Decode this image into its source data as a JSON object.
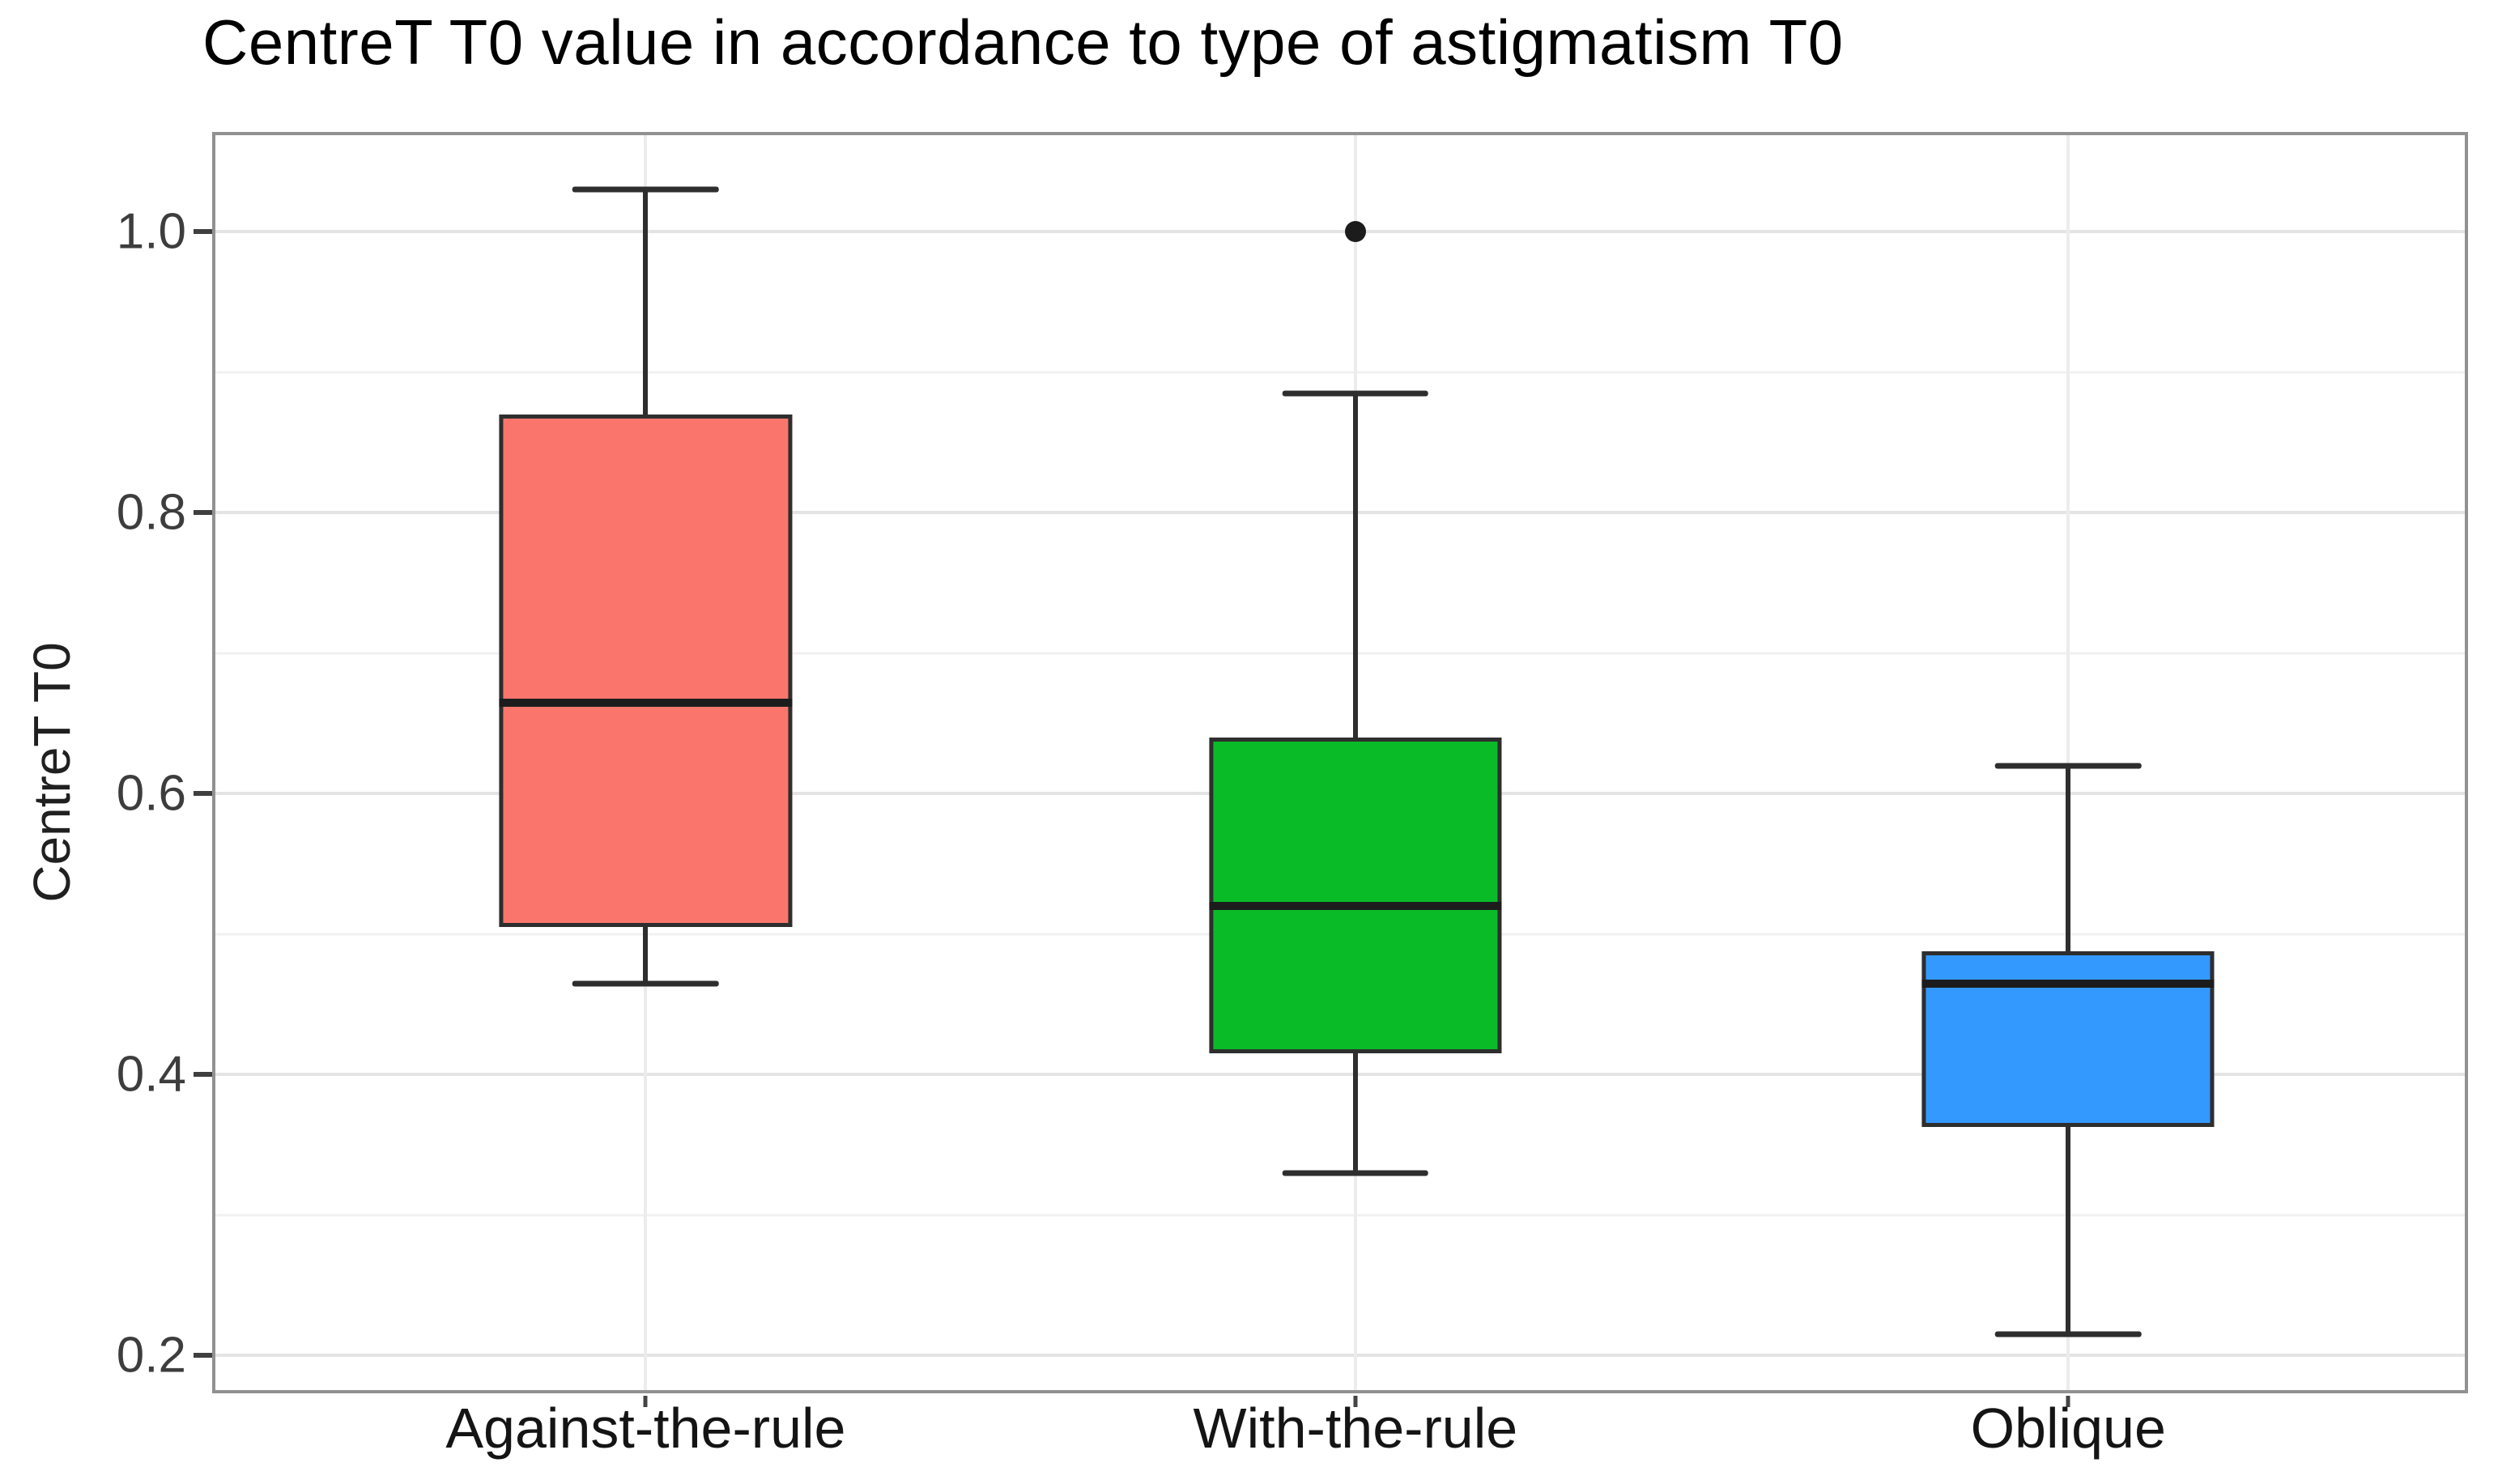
{
  "chart_data": {
    "type": "boxplot",
    "title": "CentreT T0 value in accordance to type of astigmatism T0",
    "ylabel": "CentreT T0",
    "xlabel": "",
    "categories": [
      "Against-the-rule",
      "With-the-rule",
      "Oblique"
    ],
    "y_ticks": [
      1.0,
      0.8,
      0.6,
      0.4,
      0.2
    ],
    "y_tick_labels": [
      "1.0",
      "0.8",
      "0.6",
      "0.4",
      "0.2"
    ],
    "y_minor_gridlines": [
      0.9,
      0.7,
      0.5,
      0.3
    ],
    "ylim": [
      0.175,
      1.069
    ],
    "grid": {
      "horizontal_major": true,
      "horizontal_minor": true,
      "vertical_major_at_categories": true
    },
    "legend_position": "none",
    "series": [
      {
        "name": "Against-the-rule",
        "fill_color": "#FA766C",
        "whisker_low": 0.465,
        "q1": 0.505,
        "median": 0.665,
        "q3": 0.87,
        "whisker_high": 1.03,
        "outliers": []
      },
      {
        "name": "With-the-rule",
        "fill_color": "#0ABB28",
        "whisker_low": 0.33,
        "q1": 0.415,
        "median": 0.52,
        "q3": 0.64,
        "whisker_high": 0.885,
        "outliers": [
          1.0
        ]
      },
      {
        "name": "Oblique",
        "fill_color": "#3399FF",
        "whisker_low": 0.215,
        "q1": 0.363,
        "median": 0.465,
        "q3": 0.488,
        "whisker_high": 0.62,
        "outliers": []
      }
    ],
    "colors": {
      "box_border": "#2e2e2e",
      "median": "#1c1c1c",
      "whisker": "#2e2e2e",
      "outlier": "#1c1c1c",
      "grid_major": "#e4e4e4",
      "grid_minor": "#f1f1f1",
      "panel_border": "#919191",
      "tick": "#3f3f3f",
      "tick_label": "#3d3d3d",
      "title": "#000000",
      "background": "#ffffff"
    }
  }
}
